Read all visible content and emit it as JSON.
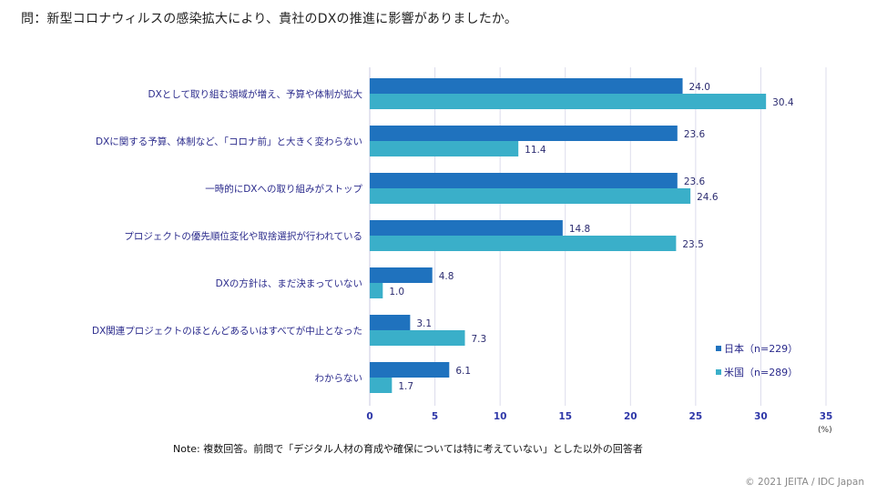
{
  "question": "問：新型コロナウィルスの感染拡大により、貴社のDXの推進に影響がありましたか。",
  "note": "Note: 複数回答。前問で「デジタル人材の育成や確保については特に考えていない」とした以外の回答者",
  "copyright": "© 2021 JEITA / IDC Japan",
  "chart_data": {
    "type": "bar",
    "orientation": "horizontal",
    "title": "問：新型コロナウィルスの感染拡大により、貴社のDXの推進に影響がありましたか。",
    "xlabel": "(%)",
    "ylabel": "",
    "xlim": [
      0,
      35
    ],
    "x_ticks": [
      "0",
      "5",
      "10",
      "15",
      "20",
      "25",
      "30",
      "35"
    ],
    "x_tick_values": [
      0,
      5,
      10,
      15,
      20,
      25,
      30,
      35
    ],
    "unit_label": "(%)",
    "grid": true,
    "legend_position": "bottom-right",
    "categories": [
      "DXとして取り組む領域が増え、予算や体制が拡大",
      "DXに関する予算、体制など、「コロナ前」と大きく変わらない",
      "一時的にDXへの取り組みがストップ",
      "プロジェクトの優先順位変化や取捨選択が行われている",
      "DXの方針は、まだ決まっていない",
      "DX関連プロジェクトのほとんどあるいはすべてが中止となった",
      "わからない"
    ],
    "series": [
      {
        "name": "日本（n=229）",
        "color": "#1f72be",
        "values": [
          24.0,
          23.6,
          23.6,
          14.8,
          4.8,
          3.1,
          6.1
        ],
        "labels": [
          "24.0",
          "23.6",
          "23.6",
          "14.8",
          "4.8",
          "3.1",
          "6.1"
        ]
      },
      {
        "name": "米国（n=289）",
        "color": "#3aafc9",
        "values": [
          30.4,
          11.4,
          24.6,
          23.5,
          1.0,
          7.3,
          1.7
        ],
        "labels": [
          "30.4",
          "11.4",
          "24.6",
          "23.5",
          "1.0",
          "7.3",
          "1.7"
        ]
      }
    ]
  }
}
